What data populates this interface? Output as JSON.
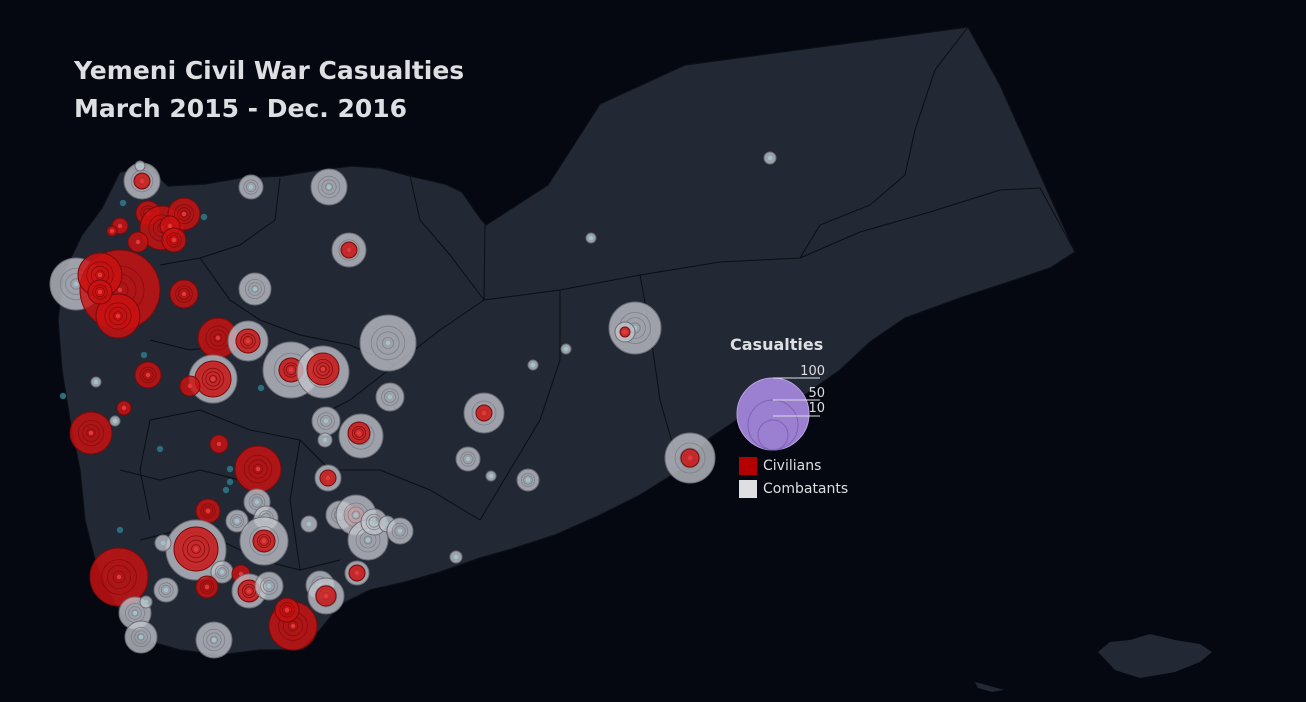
{
  "title": {
    "line1": "Yemeni Civil War Casualties",
    "line2": "March 2015 - Dec. 2016"
  },
  "legend": {
    "title": "Casualties",
    "size_labels": [
      "100",
      "50",
      "10"
    ],
    "size_values": [
      100,
      50,
      10
    ],
    "categories": [
      {
        "label": "Civilians",
        "color": "#b30000"
      },
      {
        "label": "Combatants",
        "color": "#dedfe3"
      }
    ]
  },
  "colors": {
    "background": "#050810",
    "land": "#222834",
    "border": "#0b0e15",
    "civilians": "#cc1111",
    "combatants": "#c2c4ca",
    "legend_bubble": "#9b7fd0",
    "dot": "#2b6f7f"
  }
}
